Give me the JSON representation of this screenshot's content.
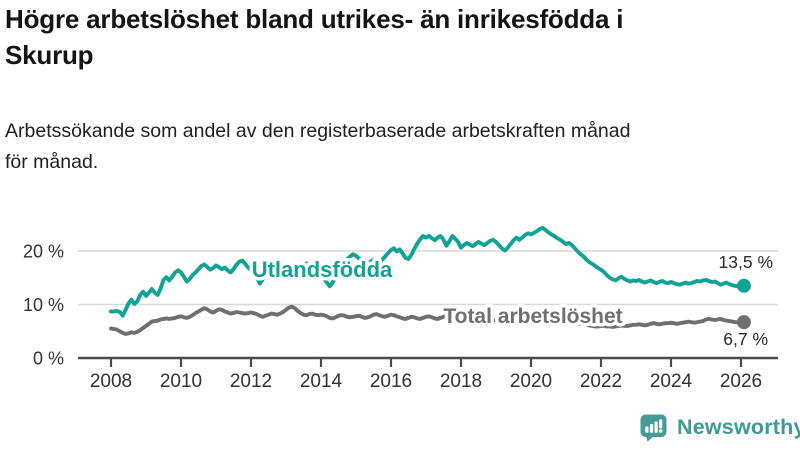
{
  "header": {
    "title": "Högre arbetslöshet bland utrikes- än inrikesfödda i\nSkurup",
    "subtitle": "Arbetssökande som andel av den registerbaserade arbetskraften månad\nför månad."
  },
  "chart_data": {
    "type": "line",
    "x_unit": "month",
    "x_start": "2008-01",
    "x_end": "2026-02",
    "x_ticks": [
      2008,
      2010,
      2012,
      2014,
      2016,
      2018,
      2020,
      2022,
      2024,
      2026
    ],
    "y_ticks": [
      {
        "label": "0 %",
        "value": 0
      },
      {
        "label": "10 %",
        "value": 10
      },
      {
        "label": "20 %",
        "value": 20
      }
    ],
    "ylim": [
      0,
      26
    ],
    "grid": "horizontal",
    "legend_position": "inline-labels",
    "xlabel": "",
    "ylabel": "",
    "series": [
      {
        "name": "Utlandsfödda",
        "color": "#12A296",
        "end_label": "13,5 %",
        "end_value": 13.5,
        "values": [
          8.7,
          8.7,
          8.8,
          8.6,
          7.9,
          9.0,
          10.2,
          10.9,
          10.1,
          10.6,
          11.8,
          12.4,
          11.6,
          12.2,
          12.9,
          12.2,
          11.8,
          13.0,
          14.6,
          15.1,
          14.5,
          15.2,
          16.0,
          16.4,
          16.0,
          15.2,
          14.3,
          14.8,
          15.5,
          16.0,
          16.6,
          17.2,
          17.5,
          17.0,
          16.5,
          16.8,
          17.3,
          17.0,
          16.6,
          16.9,
          16.4,
          16.0,
          16.6,
          17.4,
          18.0,
          18.2,
          17.6,
          16.9,
          16.5,
          16.0,
          15.1,
          13.9,
          14.7,
          15.8,
          16.6,
          17.1,
          16.8,
          16.5,
          16.8,
          17.1,
          17.4,
          17.6,
          17.1,
          16.5,
          16.1,
          16.7,
          17.3,
          17.7,
          17.4,
          16.9,
          16.4,
          16.0,
          15.5,
          14.9,
          14.1,
          13.4,
          14.1,
          15.3,
          16.5,
          17.4,
          18.0,
          18.5,
          19.0,
          19.4,
          19.1,
          18.6,
          18.2,
          17.9,
          17.6,
          18.0,
          18.4,
          18.2,
          17.9,
          18.4,
          19.0,
          19.6,
          20.2,
          20.5,
          19.9,
          20.3,
          19.5,
          18.7,
          18.5,
          19.3,
          20.4,
          21.4,
          22.2,
          22.8,
          22.5,
          22.8,
          22.4,
          22.0,
          22.5,
          22.8,
          22.1,
          21.0,
          21.8,
          22.8,
          22.3,
          21.7,
          20.6,
          21.1,
          21.5,
          21.2,
          20.9,
          21.3,
          21.7,
          21.4,
          21.1,
          21.5,
          21.9,
          22.1,
          21.7,
          21.1,
          20.5,
          20.1,
          20.6,
          21.3,
          22.0,
          22.5,
          22.1,
          22.5,
          23.0,
          23.3,
          23.1,
          23.4,
          23.7,
          24.1,
          24.3,
          23.9,
          23.5,
          23.1,
          22.8,
          22.4,
          22.1,
          21.7,
          21.3,
          21.5,
          21.1,
          20.5,
          19.9,
          19.4,
          19.0,
          18.4,
          17.9,
          17.6,
          17.2,
          16.8,
          16.5,
          16.1,
          15.5,
          15.0,
          14.7,
          14.5,
          14.9,
          15.2,
          14.8,
          14.5,
          14.3,
          14.5,
          14.4,
          14.6,
          14.3,
          14.1,
          14.3,
          14.5,
          14.2,
          14.0,
          14.2,
          14.4,
          14.1,
          14.0,
          14.2,
          14.0,
          13.8,
          13.7,
          13.9,
          14.1,
          13.9,
          14.0,
          14.2,
          14.4,
          14.3,
          14.5,
          14.6,
          14.4,
          14.2,
          14.3,
          14.0,
          13.7,
          13.9,
          14.1,
          13.8,
          13.6,
          13.5,
          13.4,
          13.4,
          13.5
        ]
      },
      {
        "name": "Total arbetslöshet",
        "color": "#6F6F6F",
        "end_label": "6,7 %",
        "end_value": 6.7,
        "values": [
          5.5,
          5.4,
          5.3,
          5.0,
          4.7,
          4.5,
          4.6,
          4.8,
          4.7,
          4.9,
          5.2,
          5.6,
          6.0,
          6.4,
          6.8,
          6.9,
          7.0,
          7.2,
          7.3,
          7.4,
          7.3,
          7.4,
          7.5,
          7.7,
          7.8,
          7.6,
          7.5,
          7.7,
          8.0,
          8.4,
          8.7,
          9.0,
          9.3,
          9.1,
          8.7,
          8.5,
          8.8,
          9.1,
          9.0,
          8.7,
          8.5,
          8.3,
          8.4,
          8.6,
          8.5,
          8.4,
          8.3,
          8.4,
          8.5,
          8.4,
          8.2,
          7.9,
          7.7,
          7.9,
          8.1,
          8.3,
          8.2,
          8.1,
          8.3,
          8.6,
          9.0,
          9.4,
          9.6,
          9.3,
          8.8,
          8.4,
          8.1,
          8.0,
          8.2,
          8.3,
          8.1,
          8.0,
          8.1,
          8.0,
          7.8,
          7.5,
          7.4,
          7.6,
          7.9,
          8.0,
          7.9,
          7.7,
          7.6,
          7.7,
          7.8,
          7.9,
          7.7,
          7.5,
          7.6,
          7.8,
          8.1,
          8.2,
          8.0,
          7.8,
          7.7,
          7.9,
          8.1,
          8.0,
          7.8,
          7.6,
          7.4,
          7.3,
          7.5,
          7.7,
          7.6,
          7.4,
          7.3,
          7.5,
          7.7,
          7.8,
          7.6,
          7.4,
          7.3,
          7.5,
          7.7,
          7.9,
          7.8,
          7.6,
          7.5,
          7.4,
          7.3,
          7.2,
          7.0,
          6.9,
          6.8,
          7.0,
          7.2,
          7.3,
          7.1,
          7.0,
          6.9,
          7.0,
          7.1,
          7.0,
          6.9,
          6.8,
          6.9,
          7.1,
          7.3,
          7.4,
          7.2,
          7.3,
          7.4,
          7.5,
          7.6,
          7.7,
          7.9,
          8.1,
          8.2,
          8.1,
          8.0,
          7.9,
          7.7,
          7.5,
          7.3,
          7.2,
          7.1,
          7.0,
          6.9,
          6.7,
          6.5,
          6.4,
          6.3,
          6.2,
          6.1,
          6.0,
          5.9,
          5.9,
          6.0,
          6.0,
          5.9,
          5.9,
          5.8,
          5.9,
          6.0,
          6.1,
          6.0,
          6.0,
          6.1,
          6.2,
          6.2,
          6.3,
          6.2,
          6.1,
          6.2,
          6.4,
          6.5,
          6.4,
          6.3,
          6.4,
          6.5,
          6.5,
          6.6,
          6.5,
          6.4,
          6.5,
          6.6,
          6.7,
          6.8,
          6.7,
          6.6,
          6.7,
          6.8,
          6.9,
          7.2,
          7.3,
          7.2,
          7.1,
          7.2,
          7.3,
          7.1,
          7.0,
          6.9,
          6.8,
          6.7,
          6.7,
          6.7,
          6.7
        ]
      }
    ],
    "style": {
      "grid_color": "#D9D9D9",
      "axis_color": "#4D4D4D",
      "tick_label_color": "#333333",
      "end_label_color": "#2B2B2B"
    }
  },
  "footer": {
    "brand": "Newsworthy",
    "brand_color": "#3D9B96"
  }
}
